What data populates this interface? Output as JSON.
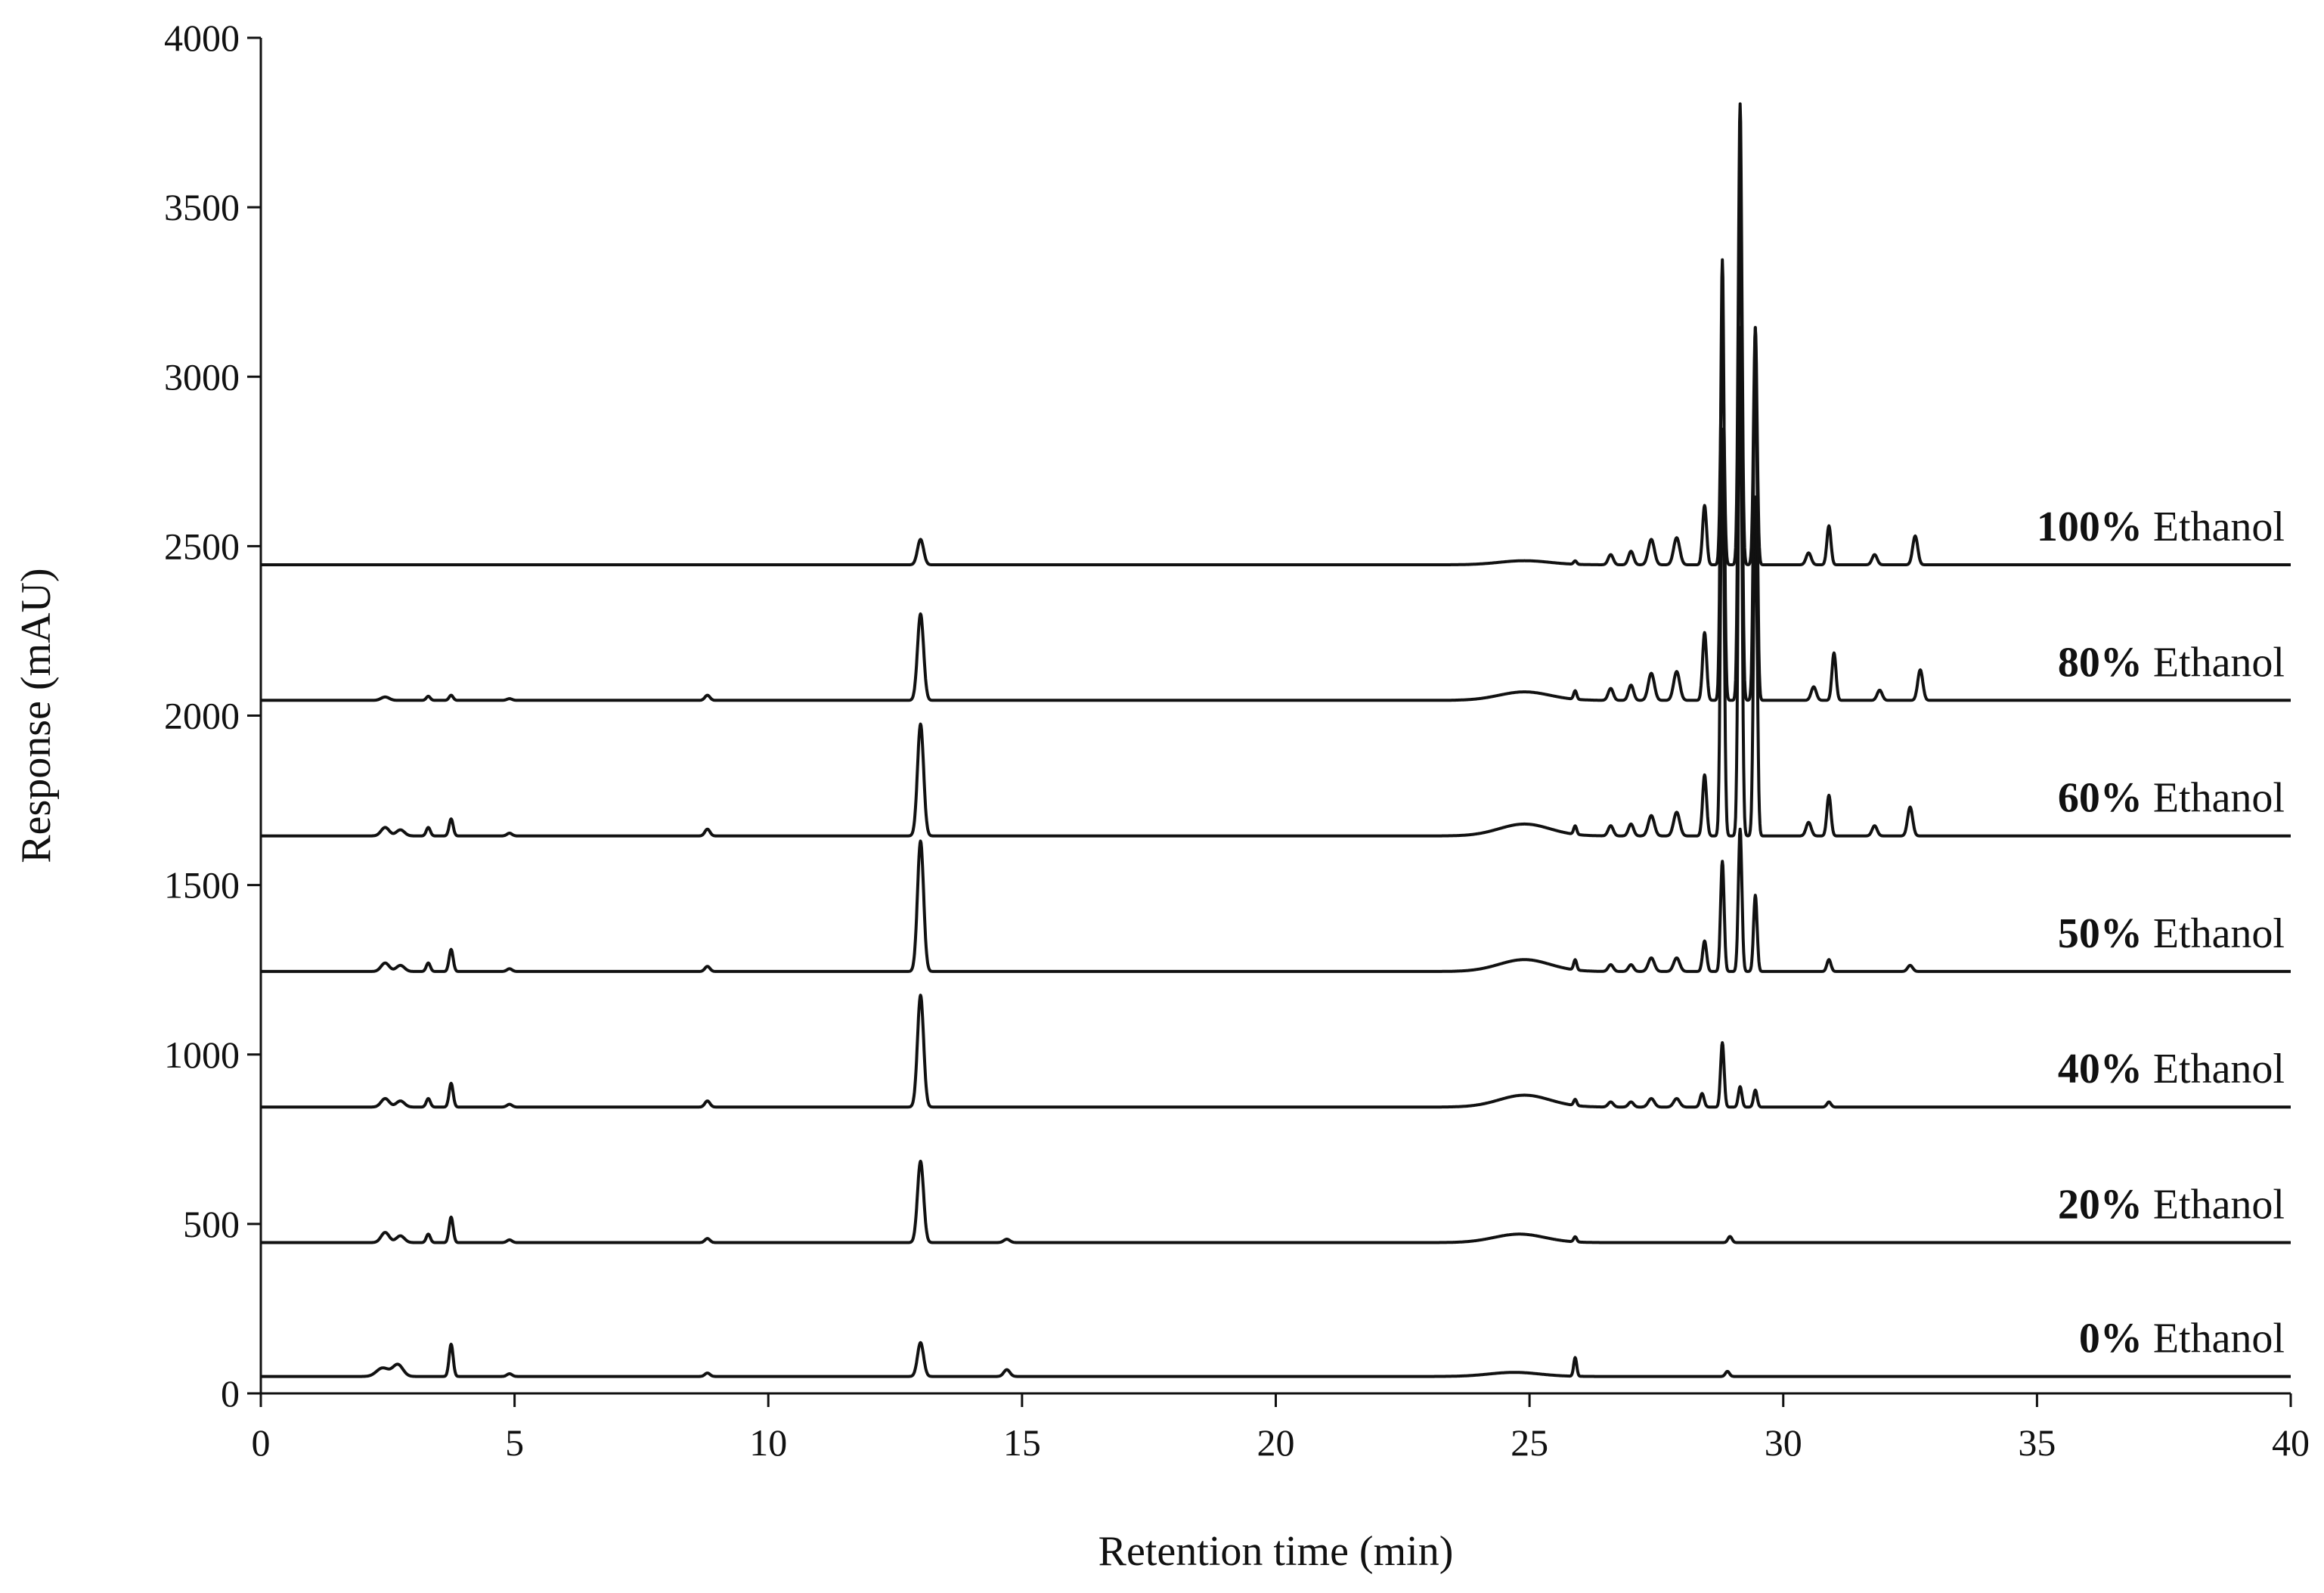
{
  "chart_data": {
    "type": "line",
    "title": "",
    "xlabel": "Retention time (min)",
    "ylabel": "Response (mAU)",
    "xlim": [
      0,
      40
    ],
    "ylim": [
      0,
      4000
    ],
    "x_ticks": [
      0,
      5,
      10,
      15,
      20,
      25,
      30,
      35,
      40
    ],
    "y_ticks": [
      0,
      500,
      1000,
      1500,
      2000,
      2500,
      3000,
      3500,
      4000
    ],
    "grid": false,
    "legend": "inline labels at right end of each trace",
    "series": [
      {
        "label_pct": "0%",
        "label_word": "Ethanol",
        "baseline": 50,
        "peaks": [
          [
            2.4,
            25,
            0.12
          ],
          [
            2.7,
            35,
            0.1
          ],
          [
            3.75,
            95,
            0.04
          ],
          [
            4.9,
            8,
            0.05
          ],
          [
            8.8,
            10,
            0.05
          ],
          [
            13.0,
            100,
            0.06
          ],
          [
            14.7,
            20,
            0.06
          ],
          [
            24.7,
            12,
            0.5
          ],
          [
            25.9,
            55,
            0.03
          ],
          [
            28.9,
            15,
            0.04
          ]
        ]
      },
      {
        "label_pct": "20%",
        "label_word": "Ethanol",
        "baseline": 445,
        "peaks": [
          [
            2.45,
            30,
            0.08
          ],
          [
            2.75,
            20,
            0.08
          ],
          [
            3.3,
            25,
            0.04
          ],
          [
            3.75,
            75,
            0.04
          ],
          [
            4.9,
            8,
            0.05
          ],
          [
            8.8,
            12,
            0.05
          ],
          [
            13.0,
            240,
            0.06
          ],
          [
            14.7,
            10,
            0.06
          ],
          [
            24.8,
            25,
            0.5
          ],
          [
            25.9,
            15,
            0.03
          ],
          [
            28.95,
            18,
            0.04
          ]
        ]
      },
      {
        "label_pct": "40%",
        "label_word": "Ethanol",
        "baseline": 845,
        "peaks": [
          [
            2.45,
            25,
            0.08
          ],
          [
            2.75,
            18,
            0.08
          ],
          [
            3.3,
            25,
            0.04
          ],
          [
            3.75,
            70,
            0.04
          ],
          [
            4.9,
            8,
            0.05
          ],
          [
            8.8,
            18,
            0.05
          ],
          [
            13.0,
            330,
            0.06
          ],
          [
            24.9,
            35,
            0.5
          ],
          [
            25.9,
            18,
            0.03
          ],
          [
            26.6,
            15,
            0.05
          ],
          [
            27.0,
            15,
            0.05
          ],
          [
            27.4,
            25,
            0.06
          ],
          [
            27.9,
            25,
            0.06
          ],
          [
            28.4,
            40,
            0.04
          ],
          [
            28.8,
            190,
            0.035
          ],
          [
            29.15,
            60,
            0.035
          ],
          [
            29.45,
            50,
            0.035
          ],
          [
            30.9,
            15,
            0.04
          ]
        ]
      },
      {
        "label_pct": "50%",
        "label_word": "Ethanol",
        "baseline": 1245,
        "peaks": [
          [
            2.45,
            25,
            0.08
          ],
          [
            2.75,
            18,
            0.08
          ],
          [
            3.3,
            25,
            0.04
          ],
          [
            3.75,
            65,
            0.04
          ],
          [
            4.9,
            8,
            0.05
          ],
          [
            8.8,
            15,
            0.05
          ],
          [
            13.0,
            385,
            0.06
          ],
          [
            24.9,
            35,
            0.5
          ],
          [
            25.9,
            30,
            0.03
          ],
          [
            26.6,
            20,
            0.05
          ],
          [
            27.0,
            20,
            0.05
          ],
          [
            27.4,
            40,
            0.06
          ],
          [
            27.9,
            40,
            0.06
          ],
          [
            28.45,
            90,
            0.04
          ],
          [
            28.8,
            325,
            0.035
          ],
          [
            29.15,
            420,
            0.035
          ],
          [
            29.45,
            225,
            0.035
          ],
          [
            30.9,
            35,
            0.04
          ],
          [
            32.5,
            18,
            0.05
          ]
        ]
      },
      {
        "label_pct": "60%",
        "label_word": "Ethanol",
        "baseline": 1645,
        "peaks": [
          [
            2.45,
            25,
            0.08
          ],
          [
            2.75,
            18,
            0.08
          ],
          [
            3.3,
            25,
            0.04
          ],
          [
            3.75,
            50,
            0.04
          ],
          [
            4.9,
            8,
            0.05
          ],
          [
            8.8,
            20,
            0.05
          ],
          [
            13.0,
            330,
            0.06
          ],
          [
            24.9,
            35,
            0.5
          ],
          [
            25.9,
            25,
            0.03
          ],
          [
            26.6,
            30,
            0.05
          ],
          [
            27.0,
            35,
            0.05
          ],
          [
            27.4,
            60,
            0.06
          ],
          [
            27.9,
            70,
            0.06
          ],
          [
            28.45,
            180,
            0.04
          ],
          [
            28.8,
            1200,
            0.035
          ],
          [
            29.15,
            1500,
            0.035
          ],
          [
            29.45,
            1000,
            0.035
          ],
          [
            30.5,
            40,
            0.05
          ],
          [
            30.9,
            120,
            0.04
          ],
          [
            31.8,
            30,
            0.05
          ],
          [
            32.5,
            85,
            0.05
          ]
        ]
      },
      {
        "label_pct": "80%",
        "label_word": "Ethanol",
        "baseline": 2045,
        "peaks": [
          [
            2.45,
            10,
            0.08
          ],
          [
            3.3,
            12,
            0.04
          ],
          [
            3.75,
            15,
            0.04
          ],
          [
            4.9,
            5,
            0.05
          ],
          [
            8.8,
            15,
            0.05
          ],
          [
            13.0,
            255,
            0.06
          ],
          [
            24.9,
            25,
            0.5
          ],
          [
            25.9,
            25,
            0.03
          ],
          [
            26.6,
            35,
            0.05
          ],
          [
            27.0,
            45,
            0.05
          ],
          [
            27.4,
            80,
            0.06
          ],
          [
            27.9,
            85,
            0.06
          ],
          [
            28.45,
            200,
            0.04
          ],
          [
            28.8,
            1300,
            0.035
          ],
          [
            29.15,
            1650,
            0.035
          ],
          [
            29.45,
            1100,
            0.035
          ],
          [
            30.6,
            40,
            0.05
          ],
          [
            31.0,
            140,
            0.04
          ],
          [
            31.9,
            30,
            0.05
          ],
          [
            32.7,
            90,
            0.05
          ]
        ]
      },
      {
        "label_pct": "100%",
        "label_word": "Ethanol",
        "baseline": 2445,
        "peaks": [
          [
            13.0,
            75,
            0.06
          ],
          [
            24.9,
            12,
            0.5
          ],
          [
            25.9,
            10,
            0.03
          ],
          [
            26.6,
            30,
            0.05
          ],
          [
            27.0,
            40,
            0.05
          ],
          [
            27.4,
            75,
            0.06
          ],
          [
            27.9,
            80,
            0.06
          ],
          [
            28.45,
            175,
            0.04
          ],
          [
            28.8,
            650,
            0.035
          ],
          [
            29.15,
            1360,
            0.035
          ],
          [
            29.45,
            700,
            0.035
          ],
          [
            30.5,
            35,
            0.05
          ],
          [
            30.9,
            115,
            0.04
          ],
          [
            31.8,
            30,
            0.05
          ],
          [
            32.6,
            85,
            0.05
          ]
        ]
      }
    ]
  }
}
